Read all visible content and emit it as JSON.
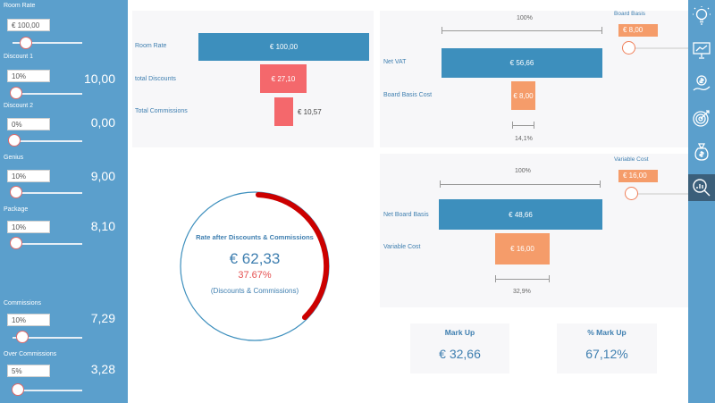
{
  "sidebar": {
    "params": [
      {
        "label": "Room Rate",
        "input": "€ 100,00",
        "value": ""
      },
      {
        "label": "Discount 1",
        "input": "10%",
        "value": "10,00"
      },
      {
        "label": "Discount 2",
        "input": "0%",
        "value": "0,00"
      },
      {
        "label": "Genius",
        "input": "10%",
        "value": "9,00"
      },
      {
        "label": "Package",
        "input": "10%",
        "value": "8,10"
      },
      {
        "label": "Commissions",
        "input": "10%",
        "value": "7,29"
      },
      {
        "label": "Over Commissions",
        "input": "5%",
        "value": "3,28"
      }
    ]
  },
  "discount_chart": {
    "rows": [
      {
        "label": "Room Rate",
        "value": "€ 100,00"
      },
      {
        "label": "total Discounts",
        "value": "€ 27,10"
      },
      {
        "label": "Total Commissions",
        "value": "€ 10,57"
      }
    ]
  },
  "vat_panel": {
    "top_pct": "100%",
    "rows": [
      {
        "label": "Net VAT",
        "value": "€ 56,66"
      },
      {
        "label": "Board Basis Cost",
        "value": "€ 8,00"
      }
    ],
    "bottom_pct": "14,1%",
    "control_label": "Board Basis",
    "control_value": "€ 8,00"
  },
  "board_panel": {
    "top_pct": "100%",
    "rows": [
      {
        "label": "Net Board Basis",
        "value": "€ 48,66"
      },
      {
        "label": "Variable Cost",
        "value": "€ 16,00"
      }
    ],
    "bottom_pct": "32,9%",
    "control_label": "Variable Cost",
    "control_value": "€ 16,00"
  },
  "gauge": {
    "title": "Rate after Discounts & Commissions",
    "value": "€ 62,33",
    "percent": "37.67%",
    "percent_fraction": 0.3767,
    "subtitle": "(Discounts & Commissions)",
    "ring_color": "#3d8fbd",
    "arc_color": "#cc0000"
  },
  "kpis": [
    {
      "title": "Mark Up",
      "value": "€ 32,66"
    },
    {
      "title": "% Mark Up",
      "value": "67,12%"
    }
  ],
  "iconbar": {
    "icons": [
      "lightbulb-icon",
      "presentation-chart-icon",
      "money-hand-icon",
      "target-icon",
      "money-bag-icon",
      "magnify-chart-icon"
    ],
    "active": "magnify-chart-icon"
  }
}
